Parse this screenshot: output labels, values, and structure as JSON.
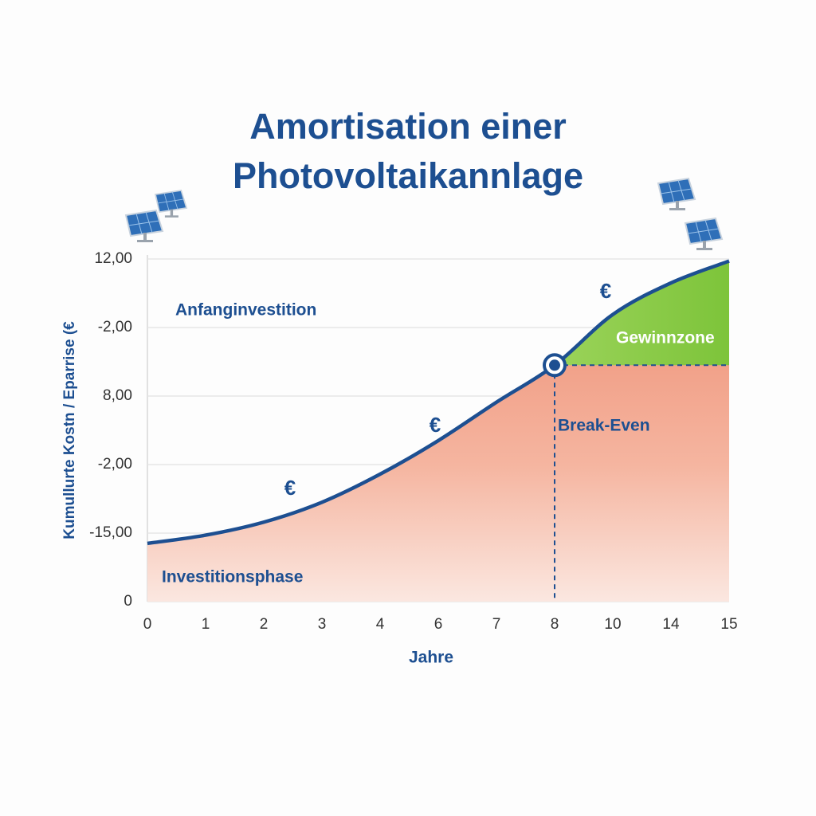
{
  "chart_data": {
    "type": "area",
    "title": "Amortisation einer Photovoltaikannlage",
    "x_label": "Jahre",
    "y_label": "Kumullurte Kostn / Eparrise (€",
    "categories": [
      "0",
      "1",
      "2",
      "3",
      "4",
      "6",
      "7",
      "8",
      "10",
      "14",
      "15"
    ],
    "values": [
      0.85,
      0.97,
      1.16,
      1.45,
      1.86,
      2.35,
      2.91,
      3.45,
      4.19,
      4.65,
      4.97
    ],
    "color": "#1d4f91",
    "ylim": [
      0,
      5
    ],
    "yticks": [
      {
        "value": 0,
        "label": "0"
      },
      {
        "value": 1,
        "label": "-15,00"
      },
      {
        "value": 2,
        "label": "-2,00"
      },
      {
        "value": 3,
        "label": "8,00"
      },
      {
        "value": 4,
        "label": "-2,00"
      },
      {
        "value": 5,
        "label": "12,00"
      }
    ],
    "grid": true,
    "annotations": [
      "Anfanginvestition",
      "Gewinnzone",
      "Break-Even",
      "Investitionsphase",
      "€",
      "€",
      "€"
    ]
  }
}
